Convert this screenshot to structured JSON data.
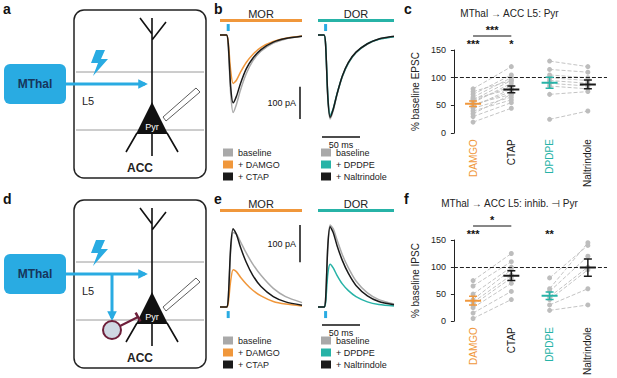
{
  "diagrams": [
    {
      "panel": "a",
      "labels": {
        "source": "MThal",
        "layer": "L5",
        "cell": "Pyr",
        "region": "ACC"
      }
    },
    {
      "panel": "d",
      "labels": {
        "source": "MThal",
        "layer": "L5",
        "cell": "Pyr",
        "region": "ACC"
      }
    }
  ],
  "chart_data": [
    {
      "panel": "b",
      "type": "line",
      "title": "MOR",
      "color": "#f0973b",
      "tick_labels": false,
      "legend": "bottom",
      "x": [
        0,
        5,
        8,
        10,
        13,
        16,
        20,
        25,
        32,
        40,
        50,
        65,
        80,
        100
      ],
      "series": [
        {
          "name": "baseline",
          "color": "#a9a9a9",
          "values": [
            0,
            0,
            0,
            -30,
            -180,
            -240,
            -215,
            -170,
            -120,
            -80,
            -50,
            -25,
            -12,
            -4
          ]
        },
        {
          "name": "+ DAMGO",
          "color": "#f0973b",
          "values": [
            0,
            0,
            0,
            -20,
            -110,
            -150,
            -140,
            -115,
            -85,
            -60,
            -38,
            -20,
            -10,
            -3
          ]
        },
        {
          "name": "+ CTAP",
          "color": "#1a1a1a",
          "values": [
            0,
            0,
            0,
            -25,
            -160,
            -210,
            -190,
            -150,
            -105,
            -72,
            -45,
            -22,
            -11,
            -4
          ]
        }
      ],
      "y_scale_bar": {
        "value": 100,
        "label": "100 pA"
      }
    },
    {
      "panel": "b",
      "type": "line",
      "title": "DOR",
      "color": "#27b3a7",
      "tick_labels": false,
      "legend": "bottom",
      "x": [
        0,
        5,
        8,
        10,
        13,
        16,
        20,
        25,
        32,
        40,
        50,
        65,
        80,
        100
      ],
      "series": [
        {
          "name": "baseline",
          "color": "#a9a9a9",
          "values": [
            0,
            0,
            0,
            -30,
            -200,
            -260,
            -235,
            -185,
            -130,
            -88,
            -55,
            -28,
            -13,
            -5
          ]
        },
        {
          "name": "+ DPDPE",
          "color": "#27b3a7",
          "values": [
            0,
            0,
            0,
            -28,
            -190,
            -250,
            -228,
            -182,
            -128,
            -86,
            -54,
            -27,
            -13,
            -5
          ]
        },
        {
          "name": "+ Naltrindole",
          "color": "#1a1a1a",
          "values": [
            0,
            0,
            0,
            -29,
            -195,
            -255,
            -230,
            -183,
            -127,
            -85,
            -53,
            -27,
            -12,
            -4
          ]
        }
      ],
      "x_scale_bar": {
        "value": 50,
        "label": "50 ms"
      }
    },
    {
      "panel": "c",
      "type": "scatter",
      "title": "MThal → ACC L5: Pyr",
      "ylabel": "% baseline EPSC",
      "grid": false,
      "categories": [
        "DAMGO",
        "CTAP",
        "DPDPE",
        "Naltrindole"
      ],
      "colors": [
        "#f0973b",
        "#1a1a1a",
        "#27b3a7",
        "#1a1a1a"
      ],
      "values": [
        53,
        79,
        91,
        88
      ],
      "errors": [
        5,
        6,
        10,
        8
      ],
      "points": [
        [
          20,
          30,
          35,
          40,
          45,
          48,
          50,
          52,
          55,
          58,
          60,
          62,
          65,
          70,
          75,
          80
        ],
        [
          45,
          55,
          70,
          60,
          65,
          80,
          75,
          70,
          90,
          85,
          95,
          80,
          100,
          105,
          95,
          120
        ],
        [
          25,
          70,
          85,
          90,
          95,
          100,
          105,
          115,
          130
        ],
        [
          40,
          75,
          80,
          85,
          90,
          95,
          100,
          110,
          120
        ]
      ],
      "reference_line": 100,
      "ylim": [
        0,
        150
      ],
      "yticks": [
        0,
        50,
        100,
        150
      ],
      "annotations": [
        {
          "text": "***",
          "categories": [
            "DAMGO"
          ]
        },
        {
          "text": "***",
          "categories": [
            "DAMGO",
            "CTAP"
          ]
        },
        {
          "text": "*",
          "categories": [
            "CTAP"
          ]
        }
      ]
    },
    {
      "panel": "e",
      "type": "line",
      "title": "MOR",
      "color": "#f0973b",
      "tick_labels": false,
      "legend": "bottom",
      "x": [
        0,
        5,
        8,
        10,
        13,
        16,
        20,
        25,
        32,
        40,
        50,
        65,
        80,
        100
      ],
      "series": [
        {
          "name": "baseline",
          "color": "#a9a9a9",
          "values": [
            0,
            0,
            0,
            20,
            150,
            200,
            195,
            175,
            145,
            115,
            85,
            50,
            28,
            12
          ]
        },
        {
          "name": "+ DAMGO",
          "color": "#f0973b",
          "values": [
            0,
            0,
            0,
            10,
            70,
            100,
            95,
            80,
            62,
            45,
            30,
            15,
            8,
            3
          ]
        },
        {
          "name": "+ CTAP",
          "color": "#1a1a1a",
          "values": [
            0,
            0,
            0,
            20,
            160,
            210,
            195,
            160,
            120,
            85,
            55,
            28,
            14,
            5
          ]
        }
      ],
      "y_scale_bar": {
        "value": 100,
        "label": "100 pA"
      }
    },
    {
      "panel": "e",
      "type": "line",
      "title": "DOR",
      "color": "#27b3a7",
      "tick_labels": false,
      "legend": "bottom",
      "x": [
        0,
        5,
        8,
        10,
        13,
        16,
        20,
        25,
        32,
        40,
        50,
        65,
        80,
        100
      ],
      "series": [
        {
          "name": "baseline",
          "color": "#a9a9a9",
          "values": [
            0,
            0,
            0,
            20,
            170,
            220,
            210,
            180,
            140,
            105,
            70,
            38,
            20,
            8
          ]
        },
        {
          "name": "+ DPDPE",
          "color": "#27b3a7",
          "values": [
            0,
            0,
            0,
            12,
            90,
            115,
            105,
            85,
            62,
            44,
            28,
            14,
            7,
            3
          ]
        },
        {
          "name": "+ Naltrindole",
          "color": "#1a1a1a",
          "values": [
            0,
            0,
            0,
            20,
            165,
            215,
            200,
            165,
            125,
            90,
            58,
            30,
            15,
            6
          ]
        }
      ],
      "x_scale_bar": {
        "value": 50,
        "label": "50 ms"
      }
    },
    {
      "panel": "f",
      "type": "scatter",
      "title": "MThal → ACC L5: inhib. ⊣ Pyr",
      "ylabel": "% baseline IPSC",
      "grid": false,
      "categories": [
        "DAMGO",
        "CTAP",
        "DPDPE",
        "Naltrindole"
      ],
      "colors": [
        "#f0973b",
        "#1a1a1a",
        "#27b3a7",
        "#1a1a1a"
      ],
      "values": [
        38,
        84,
        47,
        99
      ],
      "errors": [
        8,
        9,
        7,
        16
      ],
      "points": [
        [
          5,
          15,
          25,
          30,
          35,
          40,
          50,
          65,
          75
        ],
        [
          40,
          55,
          70,
          80,
          85,
          95,
          100,
          110,
          125
        ],
        [
          20,
          30,
          40,
          45,
          55,
          60,
          80
        ],
        [
          30,
          60,
          95,
          100,
          120,
          145,
          140
        ]
      ],
      "reference_line": 100,
      "ylim": [
        0,
        150
      ],
      "yticks": [
        0,
        50,
        100,
        150
      ],
      "annotations": [
        {
          "text": "***",
          "categories": [
            "DAMGO"
          ]
        },
        {
          "text": "*",
          "categories": [
            "DAMGO",
            "CTAP"
          ]
        },
        {
          "text": "**",
          "categories": [
            "DPDPE"
          ]
        }
      ]
    }
  ]
}
